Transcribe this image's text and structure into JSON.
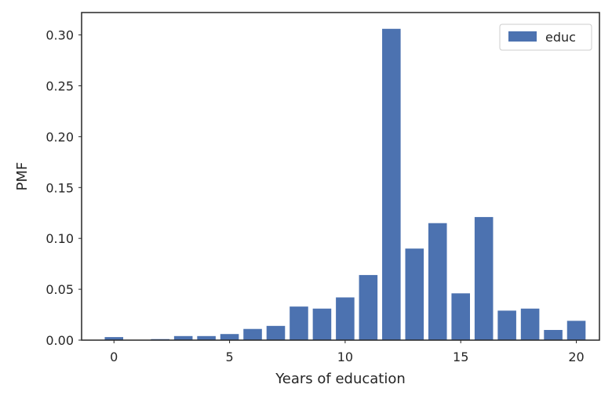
{
  "chart_data": {
    "type": "bar",
    "x": [
      0,
      2,
      3,
      4,
      5,
      6,
      7,
      8,
      9,
      10,
      11,
      12,
      13,
      14,
      15,
      16,
      17,
      18,
      19,
      20
    ],
    "series": [
      {
        "name": "educ",
        "values": [
          0.003,
          0.001,
          0.004,
          0.004,
          0.006,
          0.011,
          0.014,
          0.033,
          0.031,
          0.042,
          0.064,
          0.306,
          0.09,
          0.115,
          0.046,
          0.121,
          0.029,
          0.031,
          0.01,
          0.019
        ],
        "color": "#4c72b0"
      }
    ],
    "xlabel": "Years of education",
    "ylabel": "PMF",
    "xlim": [
      -1.4,
      21.0
    ],
    "ylim": [
      0,
      0.322
    ],
    "xticks": [
      0,
      5,
      10,
      15,
      20
    ],
    "xtick_labels": [
      "0",
      "5",
      "10",
      "15",
      "20"
    ],
    "yticks": [
      0.0,
      0.05,
      0.1,
      0.15,
      0.2,
      0.25,
      0.3
    ],
    "ytick_labels": [
      "0.00",
      "0.05",
      "0.10",
      "0.15",
      "0.20",
      "0.25",
      "0.30"
    ],
    "grid": false,
    "legend": "top-right"
  }
}
